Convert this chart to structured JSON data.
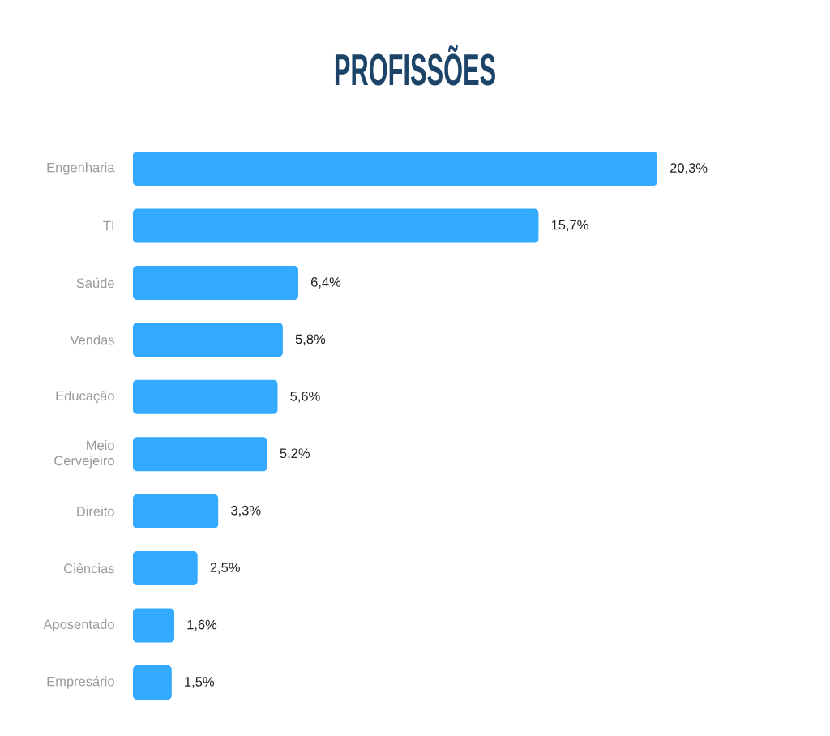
{
  "chart_data": {
    "type": "bar",
    "orientation": "horizontal",
    "title": "PROFISSÕES",
    "categories": [
      "Engenharia",
      "TI",
      "Saúde",
      "Vendas",
      "Educação",
      "Meio Cervejeiro",
      "Direito",
      "Ciências",
      "Aposentado",
      "Empresário"
    ],
    "values": [
      20.3,
      15.7,
      6.4,
      5.8,
      5.6,
      5.2,
      3.3,
      2.5,
      1.6,
      1.5
    ],
    "value_labels": [
      "20,3%",
      "15,7%",
      "6,4%",
      "5,8%",
      "5,6%",
      "5,2%",
      "3,3%",
      "2,5%",
      "1,6%",
      "1,5%"
    ],
    "color": "#33aaff"
  }
}
